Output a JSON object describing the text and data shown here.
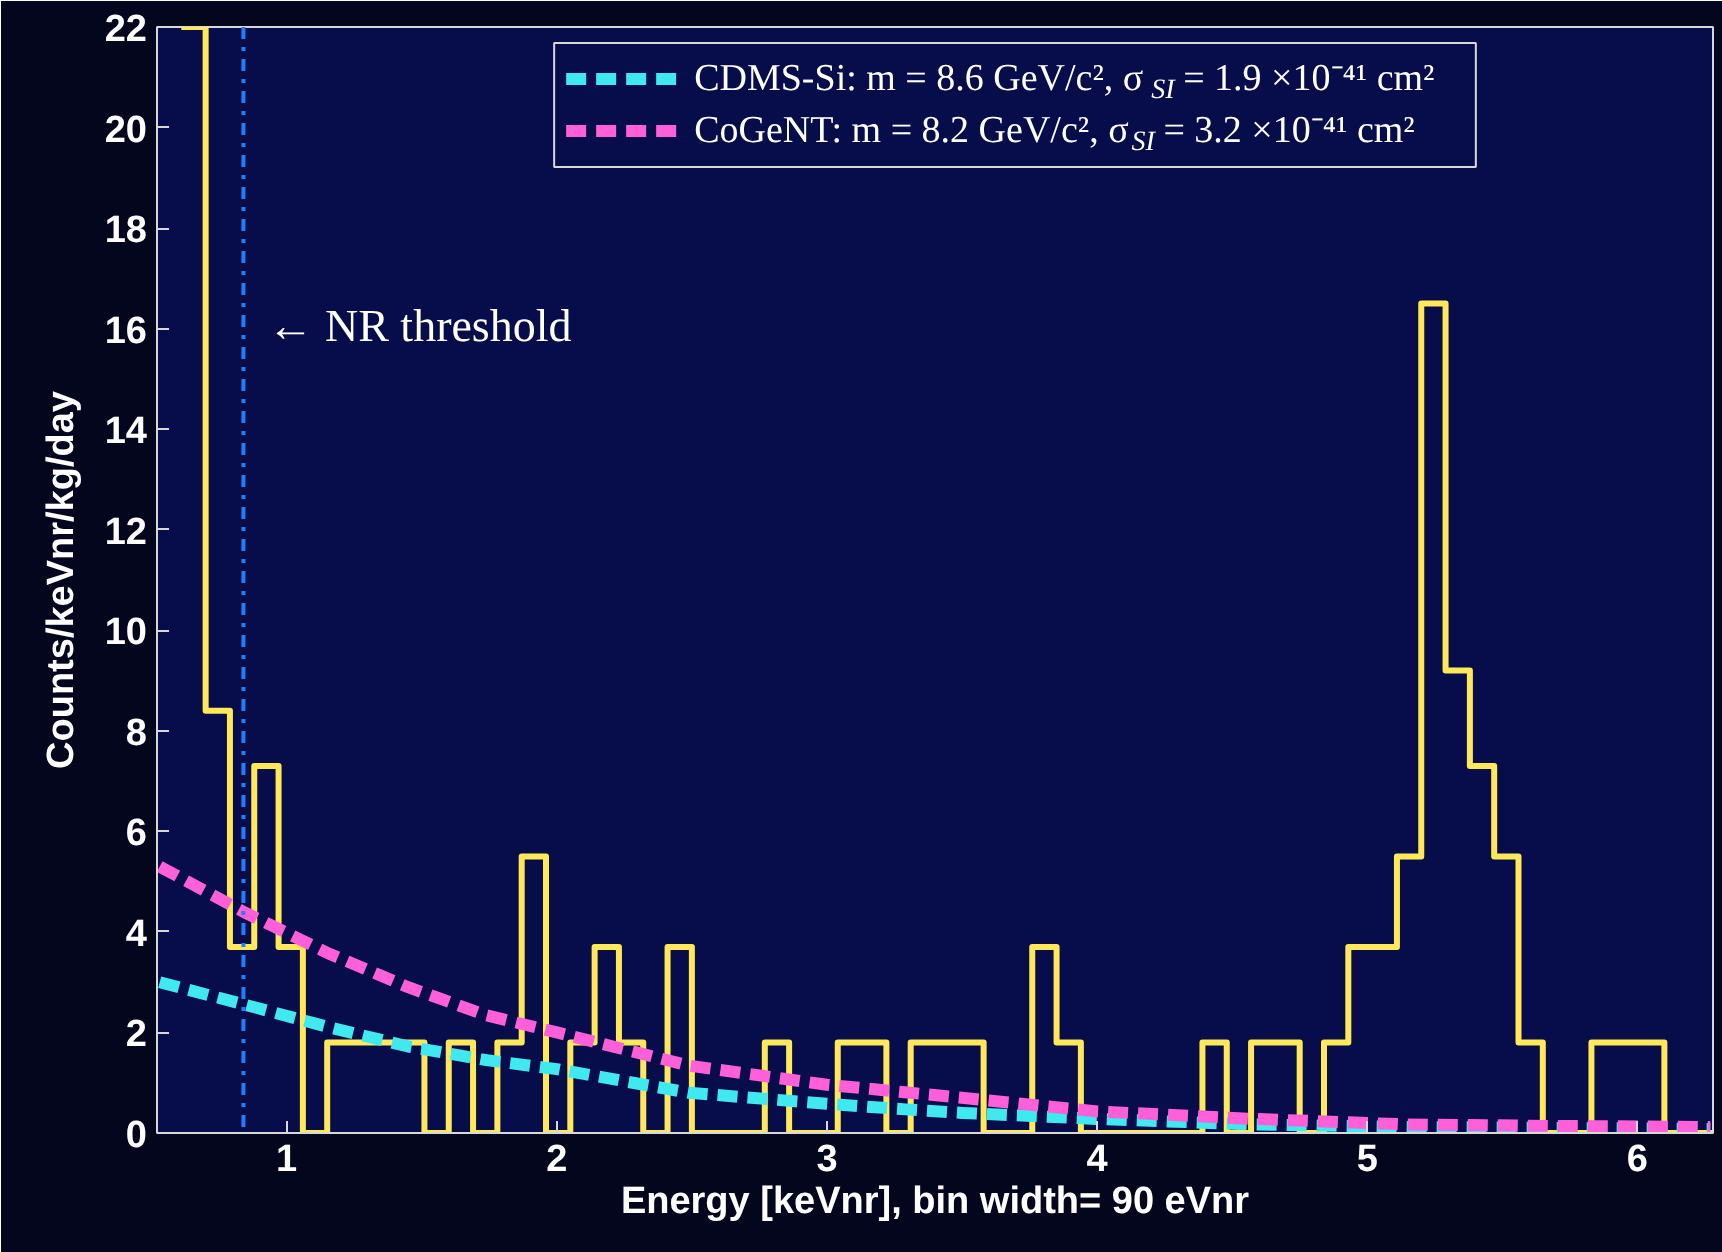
{
  "chart_data": {
    "type": "histogram",
    "xlabel": "Energy [keVnr], bin width= 90 eVnr",
    "ylabel": "Counts/keVnr/kg/day",
    "xlim": [
      0.52,
      6.28
    ],
    "ylim": [
      0,
      22
    ],
    "xticks": [
      1,
      2,
      3,
      4,
      5,
      6
    ],
    "yticks": [
      0,
      2,
      4,
      6,
      8,
      10,
      12,
      14,
      16,
      18,
      20,
      22
    ],
    "grid": false,
    "legend": "top",
    "series": [
      {
        "color": "#ffe95a",
        "bins": [
          0.61,
          0.7,
          0.79,
          0.88,
          0.97,
          1.06,
          1.15,
          1.24,
          1.33,
          1.42,
          1.51,
          1.6,
          1.69,
          1.78,
          1.87,
          1.96,
          2.05,
          2.14,
          2.23,
          2.32,
          2.41,
          2.5,
          2.59,
          2.68,
          2.77,
          2.86,
          2.95,
          3.04,
          3.13,
          3.22,
          3.31,
          3.4,
          3.49,
          3.58,
          3.67,
          3.76,
          3.85,
          3.94,
          4.03,
          4.12,
          4.21,
          4.3,
          4.39,
          4.48,
          4.57,
          4.66,
          4.75,
          4.84,
          4.93,
          5.02,
          5.11,
          5.2,
          5.29,
          5.38,
          5.47,
          5.56,
          5.65,
          5.74,
          5.83,
          5.92,
          6.01,
          6.1,
          6.19,
          6.28
        ],
        "values": [
          22,
          8.4,
          3.7,
          7.3,
          3.7,
          0,
          1.8,
          1.8,
          1.8,
          1.8,
          0,
          1.8,
          0,
          1.8,
          5.5,
          0,
          1.8,
          3.7,
          1.8,
          0,
          3.7,
          0,
          0,
          0,
          1.8,
          0,
          0,
          1.8,
          1.8,
          0,
          1.8,
          1.8,
          1.8,
          0,
          0,
          3.7,
          1.8,
          0,
          0,
          0,
          0,
          0,
          1.8,
          0,
          1.8,
          1.8,
          0,
          1.8,
          3.7,
          3.7,
          5.5,
          16.5,
          9.2,
          7.3,
          5.5,
          1.8,
          0,
          0,
          1.8,
          1.8,
          1.8,
          0,
          0
        ]
      },
      {
        "type": "line",
        "name": "CDMS-Si: m = 8.6 GeV/c², σ$_{SI}$ = 1.9 ×10⁻⁴¹ cm²",
        "color": "#40e8f0",
        "line_style": "dashed",
        "x": [
          0.53,
          0.84,
          1.16,
          1.45,
          1.74,
          2.0,
          2.49,
          3.0,
          3.29,
          3.5,
          4.0,
          4.58,
          5.15,
          5.7,
          6.27
        ],
        "values": [
          3.0,
          2.56,
          2.1,
          1.72,
          1.45,
          1.27,
          0.8,
          0.58,
          0.47,
          0.4,
          0.28,
          0.17,
          0.12,
          0.1,
          0.08
        ]
      },
      {
        "type": "line",
        "name": "CoGeNT: m = 8.2 GeV/c², σ$_{SI}$ = 3.2 ×10⁻⁴¹ cm²",
        "color": "#ff5fd8",
        "line_style": "dashed",
        "x": [
          0.53,
          0.84,
          1.16,
          1.45,
          1.74,
          2.0,
          2.49,
          3.0,
          3.29,
          3.5,
          4.0,
          4.58,
          5.15,
          5.7,
          6.27
        ],
        "values": [
          5.3,
          4.4,
          3.56,
          2.9,
          2.34,
          2.0,
          1.34,
          0.96,
          0.81,
          0.7,
          0.43,
          0.28,
          0.17,
          0.14,
          0.12
        ]
      }
    ],
    "ref_lines": [
      {
        "axis": "x",
        "value": 0.84,
        "label": "← NR threshold",
        "color": "#1e7fff",
        "line_style": "dashdot"
      }
    ]
  }
}
